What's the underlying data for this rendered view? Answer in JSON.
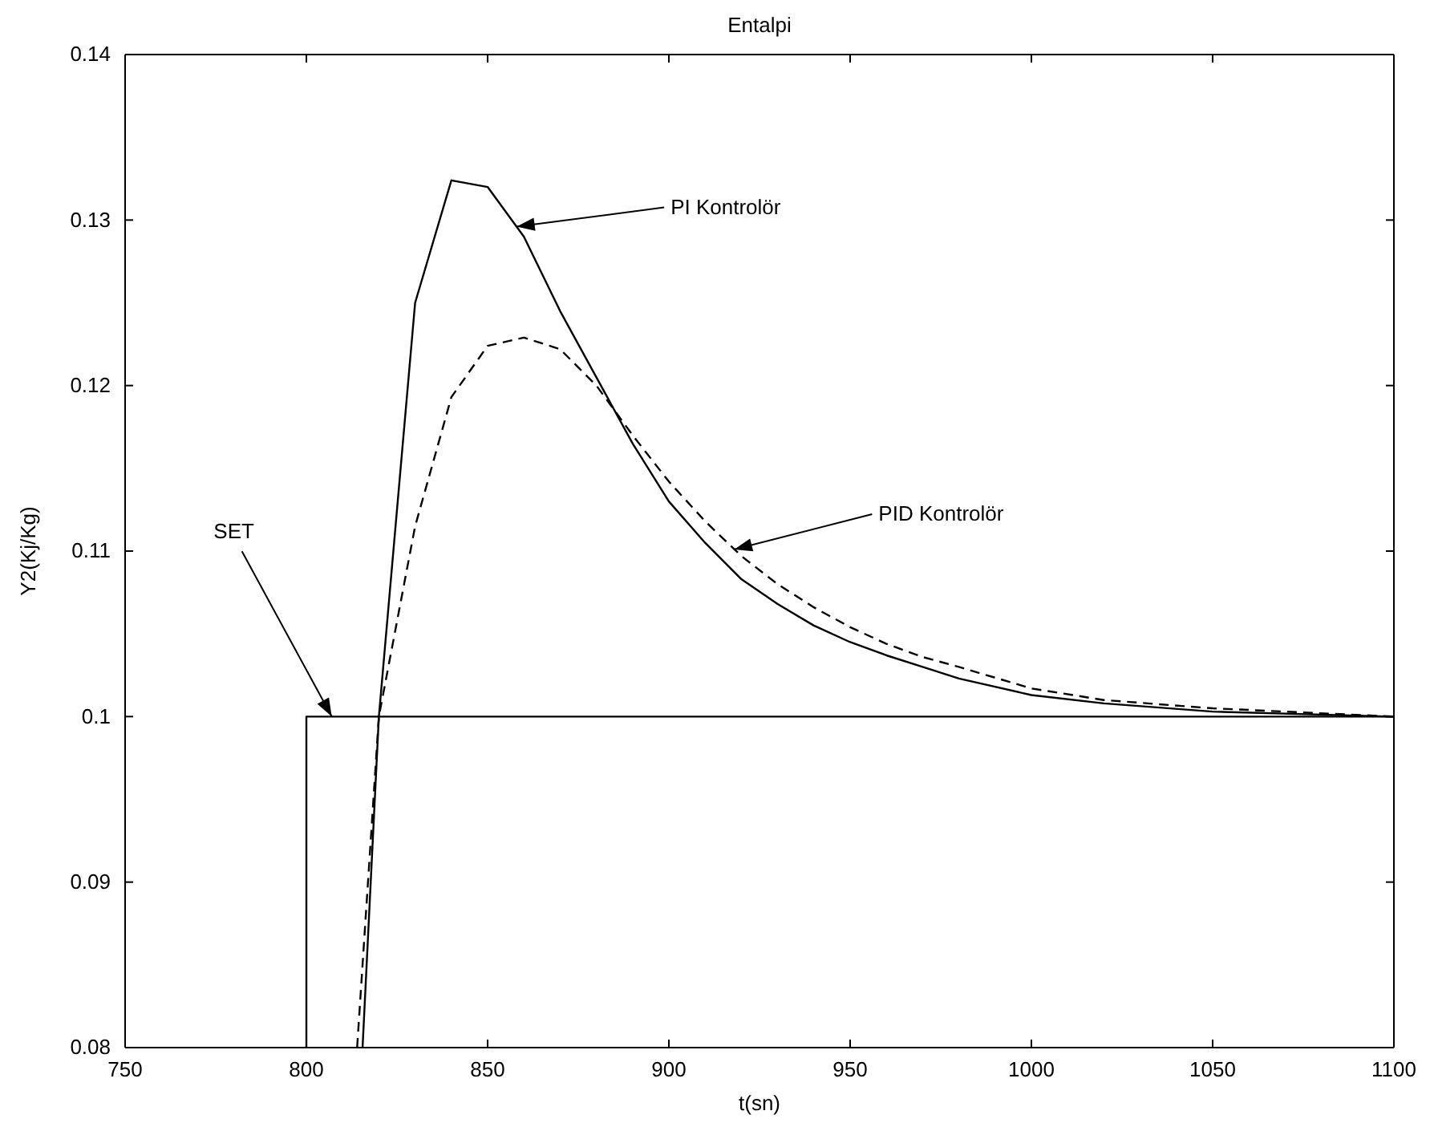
{
  "chart_data": {
    "type": "line",
    "title": "Entalpi",
    "xlabel": "t(sn)",
    "ylabel": "Y2(Kj/Kg)",
    "xlim": [
      750,
      1100
    ],
    "xticks": [
      750,
      800,
      850,
      900,
      950,
      1000,
      1050,
      1100
    ],
    "ylim": [
      0.08,
      0.14
    ],
    "yticks": [
      0.08,
      0.09,
      0.1,
      0.11,
      0.12,
      0.13,
      0.14
    ],
    "grid": false,
    "marker": "none",
    "series": [
      {
        "color": "#000000",
        "line_style": "solid",
        "x": [
          800,
          800,
          1100
        ],
        "values": [
          0.08,
          0.1,
          0.1
        ]
      },
      {
        "color": "#000000",
        "line_style": "solid",
        "x": [
          815.5,
          820,
          830,
          840,
          850,
          860,
          870,
          880,
          890,
          900,
          910,
          920,
          930,
          940,
          950,
          960,
          970,
          980,
          1000,
          1020,
          1050,
          1100
        ],
        "values": [
          0.08,
          0.1,
          0.125,
          0.1324,
          0.132,
          0.129,
          0.1245,
          0.1205,
          0.1165,
          0.113,
          0.1105,
          0.1083,
          0.1068,
          0.1055,
          0.1045,
          0.1037,
          0.103,
          0.1023,
          0.1013,
          0.1008,
          0.1003,
          0.1
        ]
      },
      {
        "color": "#000000",
        "line_style": "dashed",
        "x": [
          814,
          820,
          830,
          840,
          850,
          860,
          870,
          880,
          890,
          900,
          910,
          920,
          930,
          940,
          950,
          960,
          970,
          980,
          1000,
          1020,
          1050,
          1100
        ],
        "values": [
          0.08,
          0.1,
          0.1115,
          0.1193,
          0.1224,
          0.1229,
          0.1222,
          0.12,
          0.117,
          0.1142,
          0.1118,
          0.1097,
          0.108,
          0.1066,
          0.1054,
          0.1044,
          0.1036,
          0.103,
          0.1017,
          0.101,
          0.1005,
          0.1
        ]
      }
    ],
    "annotations": [
      {
        "text": "PI Kontrolör",
        "x": 858,
        "y": 0.1296
      },
      {
        "text": "PID Kontrolör",
        "x": 918,
        "y": 0.1101
      },
      {
        "text": "SET",
        "x": 807,
        "y": 0.1
      }
    ]
  }
}
